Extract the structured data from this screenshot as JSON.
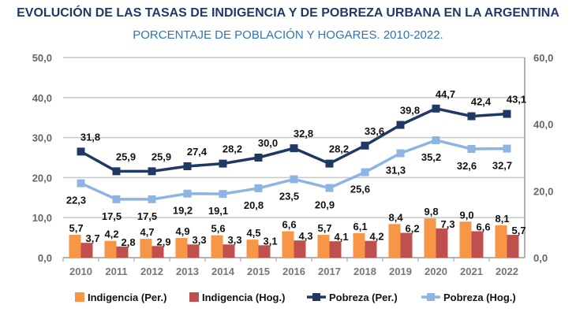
{
  "chart_data": {
    "type": "bar+line",
    "title": "EVOLUCIÓN DE LAS TASAS DE INDIGENCIA Y DE POBREZA URBANA EN LA ARGENTINA",
    "subtitle": "PORCENTAJE DE POBLACIÓN Y HOGARES. 2010-2022.",
    "categories": [
      "2010",
      "2011",
      "2012",
      "2013",
      "2014",
      "2015",
      "2016",
      "2017",
      "2018",
      "2019",
      "2020",
      "2021",
      "2022"
    ],
    "y_left": {
      "range": [
        0,
        50
      ],
      "ticks": [
        "0,0",
        "10,0",
        "20,0",
        "30,0",
        "40,0",
        "50,0"
      ]
    },
    "y_right": {
      "range": [
        0,
        60
      ],
      "ticks": [
        "0,0",
        "20,0",
        "40,0",
        "60,0"
      ]
    },
    "grid": true,
    "legend_placement": "bottom",
    "series": [
      {
        "name": "Indigencia (Per.)",
        "type": "bar",
        "axis": "left",
        "color": "#f79646",
        "values": [
          5.7,
          4.2,
          4.7,
          4.9,
          5.6,
          4.5,
          6.6,
          5.7,
          6.1,
          8.4,
          9.8,
          9.0,
          8.1
        ]
      },
      {
        "name": "Indigencia (Hog.)",
        "type": "bar",
        "axis": "left",
        "color": "#c0504d",
        "values": [
          3.7,
          2.8,
          2.9,
          3.3,
          3.3,
          3.1,
          4.3,
          4.1,
          4.2,
          6.2,
          7.3,
          6.6,
          5.7
        ]
      },
      {
        "name": "Pobreza (Per.)",
        "type": "line",
        "axis": "right",
        "color": "#1f3864",
        "values": [
          31.8,
          25.9,
          25.9,
          27.4,
          28.2,
          30.0,
          32.8,
          28.2,
          33.6,
          39.8,
          44.7,
          42.4,
          43.1
        ]
      },
      {
        "name": "Pobreza (Hog.)",
        "type": "line",
        "axis": "right",
        "color": "#8eb4e3",
        "values": [
          22.3,
          17.5,
          17.5,
          19.2,
          19.1,
          20.8,
          23.5,
          20.9,
          25.6,
          31.3,
          35.2,
          32.6,
          32.7
        ]
      }
    ]
  }
}
